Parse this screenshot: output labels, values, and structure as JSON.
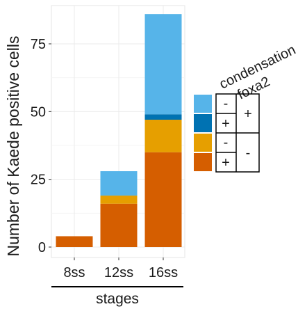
{
  "chart_data": {
    "type": "bar",
    "stacked": true,
    "categories": [
      "8ss",
      "12ss",
      "16ss"
    ],
    "ylabel": "Number of Kaede positive cells",
    "xlabel": "stages",
    "ylim": [
      0,
      88
    ],
    "yticks": [
      0,
      25,
      50,
      75
    ],
    "ytick_labels": [
      "0",
      "25",
      "50",
      "75"
    ],
    "grid": true,
    "legend_position": "right",
    "series": [
      {
        "key": "s1",
        "color": "#D55E00",
        "values": [
          4,
          16,
          35
        ]
      },
      {
        "key": "s2",
        "color": "#E69F00",
        "values": [
          0,
          3,
          12
        ]
      },
      {
        "key": "s3",
        "color": "#0072B2",
        "values": [
          0,
          0,
          2
        ]
      },
      {
        "key": "s4",
        "color": "#56B4E9",
        "values": [
          0,
          9,
          37
        ]
      }
    ],
    "legend": {
      "row_header_1": "condensation",
      "row_header_2": "foxa2",
      "swatch_colors": [
        "#56B4E9",
        "#0072B2",
        "#E69F00",
        "#D55E00"
      ],
      "condensation_signs": [
        "-",
        "+",
        "-",
        "+"
      ],
      "foxa2_signs": [
        "+",
        "-"
      ]
    }
  }
}
